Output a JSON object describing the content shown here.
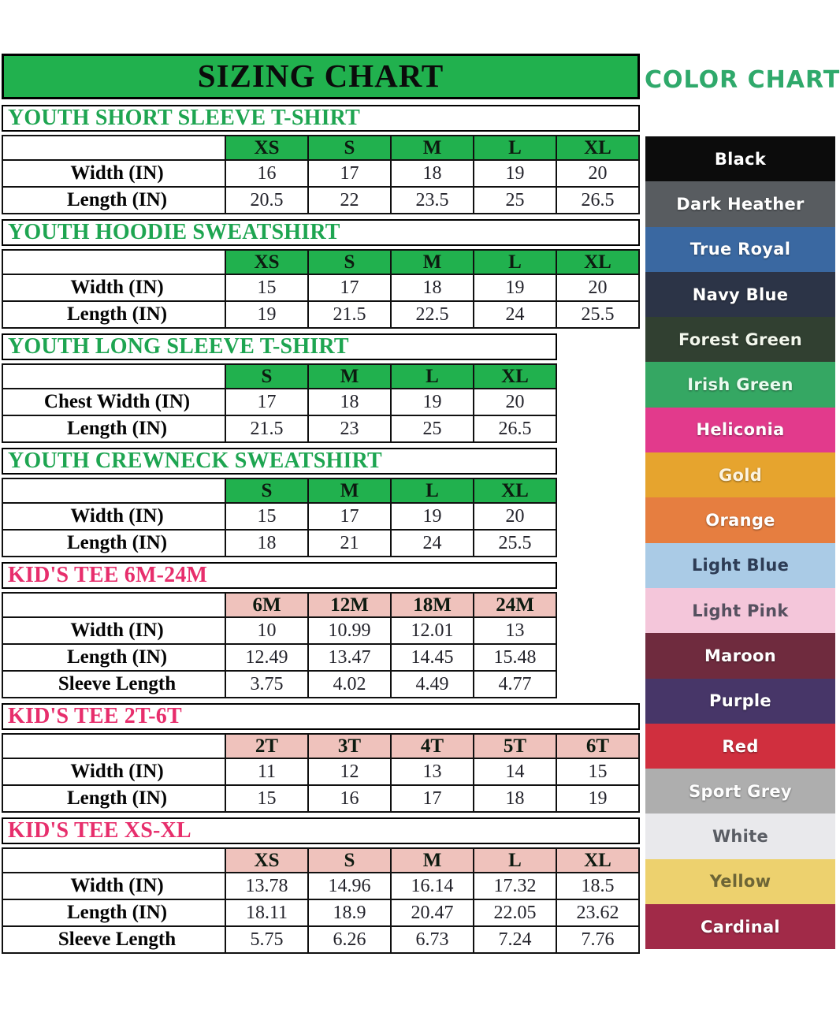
{
  "sizing_title": "SIZING CHART",
  "chart_data": [
    {
      "type": "table",
      "title": "YOUTH SHORT SLEEVE T-SHIRT",
      "theme": "green",
      "columns": [
        "XS",
        "S",
        "M",
        "L",
        "XL"
      ],
      "rows": [
        {
          "label": "Width (IN)",
          "values": [
            "16",
            "17",
            "18",
            "19",
            "20"
          ]
        },
        {
          "label": "Length (IN)",
          "values": [
            "20.5",
            "22",
            "23.5",
            "25",
            "26.5"
          ]
        }
      ]
    },
    {
      "type": "table",
      "title": "YOUTH HOODIE SWEATSHIRT",
      "theme": "green",
      "columns": [
        "XS",
        "S",
        "M",
        "L",
        "XL"
      ],
      "rows": [
        {
          "label": "Width (IN)",
          "values": [
            "15",
            "17",
            "18",
            "19",
            "20"
          ]
        },
        {
          "label": "Length (IN)",
          "values": [
            "19",
            "21.5",
            "22.5",
            "24",
            "25.5"
          ]
        }
      ]
    },
    {
      "type": "table",
      "title": "YOUTH LONG SLEEVE T-SHIRT",
      "theme": "green",
      "columns": [
        "S",
        "M",
        "L",
        "XL"
      ],
      "rows": [
        {
          "label": "Chest Width (IN)",
          "values": [
            "17",
            "18",
            "19",
            "20"
          ]
        },
        {
          "label": "Length (IN)",
          "values": [
            "21.5",
            "23",
            "25",
            "26.5"
          ]
        }
      ]
    },
    {
      "type": "table",
      "title": "YOUTH CREWNECK SWEATSHIRT",
      "theme": "green",
      "columns": [
        "S",
        "M",
        "L",
        "XL"
      ],
      "rows": [
        {
          "label": "Width (IN)",
          "values": [
            "15",
            "17",
            "19",
            "20"
          ]
        },
        {
          "label": "Length (IN)",
          "values": [
            "18",
            "21",
            "24",
            "25.5"
          ]
        }
      ]
    },
    {
      "type": "table",
      "title": "KID'S TEE 6M-24M",
      "theme": "pink",
      "columns": [
        "6M",
        "12M",
        "18M",
        "24M"
      ],
      "rows": [
        {
          "label": "Width (IN)",
          "values": [
            "10",
            "10.99",
            "12.01",
            "13"
          ]
        },
        {
          "label": "Length (IN)",
          "values": [
            "12.49",
            "13.47",
            "14.45",
            "15.48"
          ]
        },
        {
          "label": "Sleeve Length",
          "values": [
            "3.75",
            "4.02",
            "4.49",
            "4.77"
          ]
        }
      ]
    },
    {
      "type": "table",
      "title": "KID'S TEE 2T-6T",
      "theme": "pink",
      "columns": [
        "2T",
        "3T",
        "4T",
        "5T",
        "6T"
      ],
      "rows": [
        {
          "label": "Width (IN)",
          "values": [
            "11",
            "12",
            "13",
            "14",
            "15"
          ]
        },
        {
          "label": "Length (IN)",
          "values": [
            "15",
            "16",
            "17",
            "18",
            "19"
          ]
        }
      ]
    },
    {
      "type": "table",
      "title": "KID'S TEE XS-XL",
      "theme": "pink",
      "columns": [
        "XS",
        "S",
        "M",
        "L",
        "XL"
      ],
      "rows": [
        {
          "label": "Width (IN)",
          "values": [
            "13.78",
            "14.96",
            "16.14",
            "17.32",
            "18.5"
          ]
        },
        {
          "label": "Length (IN)",
          "values": [
            "18.11",
            "18.9",
            "20.47",
            "22.05",
            "23.62"
          ]
        },
        {
          "label": "Sleeve Length",
          "values": [
            "5.75",
            "6.26",
            "6.73",
            "7.24",
            "7.76"
          ]
        }
      ]
    }
  ],
  "color_chart": {
    "title": "COLOR CHART",
    "swatches": [
      {
        "name": "Black",
        "bg": "#0c0c0c",
        "fg": "#ffffff"
      },
      {
        "name": "Dark Heather",
        "bg": "#585c60",
        "fg": "#ffffff"
      },
      {
        "name": "True Royal",
        "bg": "#3a68a1",
        "fg": "#ffffff"
      },
      {
        "name": "Navy Blue",
        "bg": "#2c3447",
        "fg": "#ffffff"
      },
      {
        "name": "Forest Green",
        "bg": "#314031",
        "fg": "#f2f7ec"
      },
      {
        "name": "Irish Green",
        "bg": "#35a763",
        "fg": "#eafbef"
      },
      {
        "name": "Heliconia",
        "bg": "#e23a8c",
        "fg": "#ffffff"
      },
      {
        "name": "Gold",
        "bg": "#e6a42e",
        "fg": "#fdf3df"
      },
      {
        "name": "Orange",
        "bg": "#e67e40",
        "fg": "#ffffff"
      },
      {
        "name": "Light Blue",
        "bg": "#aacbe6",
        "fg": "#2d3c55"
      },
      {
        "name": "Light Pink",
        "bg": "#f4c6da",
        "fg": "#55505f"
      },
      {
        "name": "Maroon",
        "bg": "#6f2b3e",
        "fg": "#ffffff"
      },
      {
        "name": "Purple",
        "bg": "#473668",
        "fg": "#ffffff"
      },
      {
        "name": "Red",
        "bg": "#d02f3e",
        "fg": "#ffffff"
      },
      {
        "name": "Sport Grey",
        "bg": "#aeaeae",
        "fg": "#fdfdfd"
      },
      {
        "name": "White",
        "bg": "#e9e9ec",
        "fg": "#5a5d64"
      },
      {
        "name": "Yellow",
        "bg": "#edd16e",
        "fg": "#6d6536"
      },
      {
        "name": "Cardinal",
        "bg": "#a12a48",
        "fg": "#ffffff"
      }
    ]
  },
  "colors": {
    "table_header_green": "#21b14e",
    "table_header_pink": "#efc2bc",
    "heading_green": "#1ea551",
    "heading_pink": "#e72e6c",
    "color_chart_title": "#2fa96b",
    "value_text": "#23232b"
  }
}
